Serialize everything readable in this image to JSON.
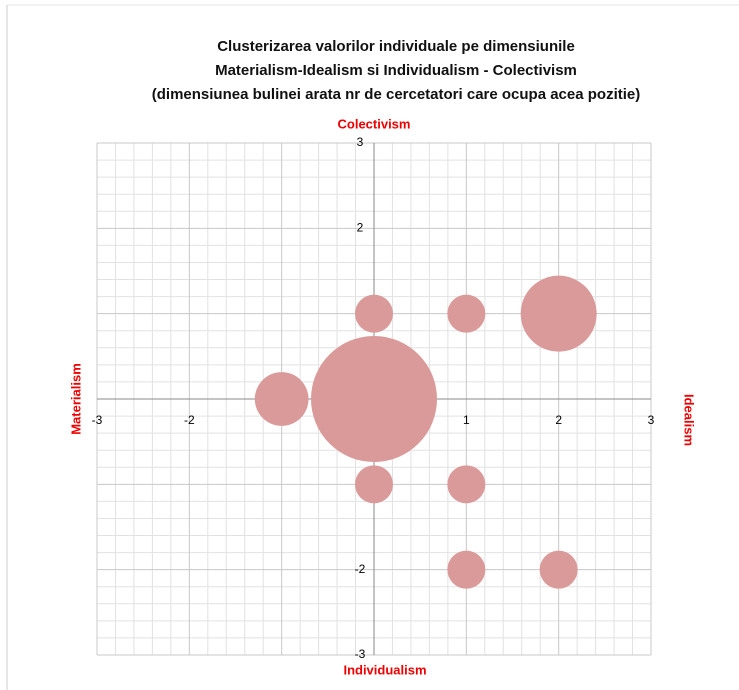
{
  "chart_data": {
    "type": "bubble",
    "title": [
      "Clusterizarea valorilor individuale pe dimensiunile",
      "Materialism-Idealism si Individualism - Colectivism",
      "(dimensiunea bulinei arata nr de cercetatori care ocupa acea pozitie)"
    ],
    "axis_labels": {
      "top": "Colectivism",
      "bottom": "Individualism",
      "left": "Materialism",
      "right": "Idealism"
    },
    "x": [
      0,
      -1,
      0,
      1,
      2,
      0,
      1,
      1,
      2
    ],
    "y": [
      0,
      0,
      1,
      1,
      1,
      -1,
      -1,
      -2,
      -2
    ],
    "sizes": [
      11,
      2,
      1,
      1,
      4,
      1,
      1,
      1,
      1
    ],
    "color": "#d99a99",
    "xlim": [
      -3,
      3
    ],
    "xticks": [
      -3,
      -2,
      -1,
      0,
      1,
      2,
      3
    ],
    "ylim": [
      -3,
      3
    ],
    "yticks": [
      -3,
      -2,
      -1,
      0,
      1,
      2,
      3
    ],
    "grid": true,
    "minor_per_major": 5
  }
}
